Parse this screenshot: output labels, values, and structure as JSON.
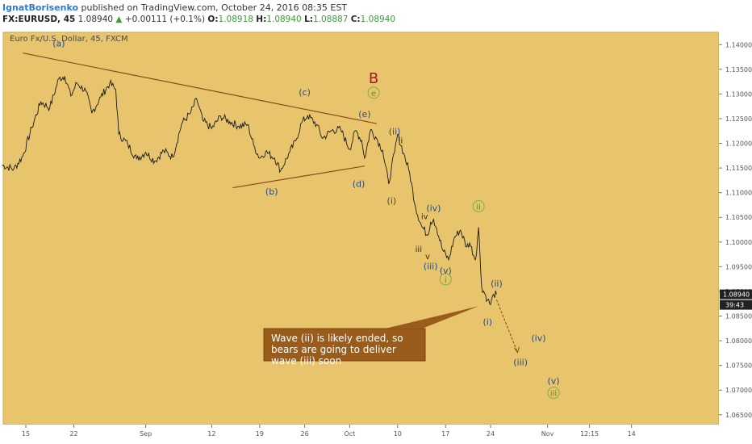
{
  "header": {
    "author": "IgnatBorisenko",
    "published_text": " published on TradingView.com, October 24, 2016 08:35 EST",
    "symbol": "FX:EURUSD, 45",
    "last": " 1.08940 ",
    "change_arrow": "▲",
    "change": " +0.00111 (+0.1%) ",
    "o_key": "O:",
    "o_val": "1.08918 ",
    "h_key": "H:",
    "h_val": "1.08940 ",
    "l_key": "L:",
    "l_val": "1.08887 ",
    "c_key": "C:",
    "c_val": "1.08940"
  },
  "chart_data": {
    "type": "line",
    "title": "Euro Fx/U.S. Dollar, 45, FXCM",
    "background": "#e8c56d",
    "line_color": "#1a1a1a",
    "ylim": [
      1.063,
      1.1425
    ],
    "y_ticks": [
      "1.14000",
      "1.13500",
      "1.13000",
      "1.12500",
      "1.12000",
      "1.11500",
      "1.11000",
      "1.10500",
      "1.10000",
      "1.09500",
      "1.09000",
      "1.08500",
      "1.08000",
      "1.07500",
      "1.07000",
      "1.06500"
    ],
    "x_ticks": [
      {
        "label": "15",
        "i": 8
      },
      {
        "label": "22",
        "i": 24
      },
      {
        "label": "Sep",
        "i": 48
      },
      {
        "label": "12",
        "i": 70
      },
      {
        "label": "19",
        "i": 86
      },
      {
        "label": "26",
        "i": 101
      },
      {
        "label": "Oct",
        "i": 116
      },
      {
        "label": "10",
        "i": 132
      },
      {
        "label": "17",
        "i": 148
      },
      {
        "label": "24",
        "i": 163
      },
      {
        "label": "Nov",
        "i": 182
      },
      {
        "label": "12:15",
        "i": 196
      },
      {
        "label": "14",
        "i": 210
      }
    ],
    "x_range": [
      0,
      250
    ],
    "series": [
      {
        "points": [
          [
            0,
            1.1156
          ],
          [
            4,
            1.1148
          ],
          [
            7,
            1.1174
          ],
          [
            10,
            1.1232
          ],
          [
            13,
            1.1284
          ],
          [
            16,
            1.1272
          ],
          [
            19,
            1.1331
          ],
          [
            21,
            1.1336
          ],
          [
            23,
            1.1296
          ],
          [
            25,
            1.1322
          ],
          [
            28,
            1.1306
          ],
          [
            30,
            1.1261
          ],
          [
            33,
            1.1294
          ],
          [
            36,
            1.1322
          ],
          [
            38,
            1.1309
          ],
          [
            39,
            1.1219
          ],
          [
            42,
            1.1198
          ],
          [
            45,
            1.1168
          ],
          [
            48,
            1.1182
          ],
          [
            51,
            1.1164
          ],
          [
            54,
            1.1185
          ],
          [
            57,
            1.1172
          ],
          [
            60,
            1.124
          ],
          [
            63,
            1.1262
          ],
          [
            65,
            1.129
          ],
          [
            67,
            1.1246
          ],
          [
            70,
            1.123
          ],
          [
            73,
            1.1255
          ],
          [
            76,
            1.1244
          ],
          [
            79,
            1.1235
          ],
          [
            82,
            1.1238
          ],
          [
            84,
            1.1196
          ],
          [
            86,
            1.117
          ],
          [
            88,
            1.1183
          ],
          [
            91,
            1.117
          ],
          [
            93,
            1.1145
          ],
          [
            96,
            1.1182
          ],
          [
            98,
            1.1205
          ],
          [
            100,
            1.1242
          ],
          [
            102,
            1.1256
          ],
          [
            105,
            1.1238
          ],
          [
            107,
            1.121
          ],
          [
            110,
            1.1226
          ],
          [
            113,
            1.1228
          ],
          [
            116,
            1.1188
          ],
          [
            118,
            1.1226
          ],
          [
            120,
            1.1206
          ],
          [
            121,
            1.117
          ],
          [
            123,
            1.1228
          ],
          [
            125,
            1.121
          ],
          [
            127,
            1.1186
          ],
          [
            129,
            1.1118
          ],
          [
            131,
            1.1183
          ],
          [
            132,
            1.1218
          ],
          [
            134,
            1.118
          ],
          [
            136,
            1.114
          ],
          [
            138,
            1.107
          ],
          [
            140,
            1.1032
          ],
          [
            142,
            1.1014
          ],
          [
            143,
            1.104
          ],
          [
            144,
            1.1046
          ],
          [
            145,
            1.1028
          ],
          [
            147,
            1.0984
          ],
          [
            149,
            1.0964
          ],
          [
            151,
            1.101
          ],
          [
            153,
            1.1024
          ],
          [
            155,
            1.099
          ],
          [
            156,
            1.0998
          ],
          [
            158,
            1.0964
          ],
          [
            159,
            1.103
          ],
          [
            160,
            1.091
          ],
          [
            162,
            1.0883
          ],
          [
            163,
            1.0873
          ],
          [
            164,
            1.0894
          ],
          [
            165,
            1.0894
          ]
        ]
      }
    ],
    "last_price_label": "1.08940",
    "countdown_label": "39:43",
    "wave_labels": [
      {
        "text": "(a)",
        "i": 19,
        "y": 1.1396
      },
      {
        "text": "(b)",
        "i": 90,
        "y": 1.1096
      },
      {
        "text": "(c)",
        "i": 101,
        "y": 1.1297
      },
      {
        "text": "(d)",
        "i": 119,
        "y": 1.1112
      },
      {
        "text": "(e)",
        "i": 121,
        "y": 1.1253
      },
      {
        "text": "(ii)",
        "i": 131,
        "y": 1.1218
      },
      {
        "text": "ii",
        "i": 133,
        "y": 1.12
      },
      {
        "text": "(i)",
        "i": 130,
        "y": 1.1077
      },
      {
        "text": "(iv)",
        "i": 144,
        "y": 1.1063
      },
      {
        "text": "iv",
        "i": 141,
        "y": 1.1046
      },
      {
        "text": "iii",
        "i": 139,
        "y": 1.098
      },
      {
        "text": "v",
        "i": 142,
        "y": 1.0965
      },
      {
        "text": "(iii)",
        "i": 143,
        "y": 1.0945
      },
      {
        "text": "(v)",
        "i": 148,
        "y": 1.0936
      },
      {
        "text": "(ii)",
        "i": 165,
        "y": 1.091
      },
      {
        "text": "(i)",
        "i": 162,
        "y": 1.0832
      },
      {
        "text": "(iv)",
        "i": 179,
        "y": 1.0799
      },
      {
        "text": "(iii)",
        "i": 173,
        "y": 1.075
      },
      {
        "text": "(v)",
        "i": 184,
        "y": 1.0713
      }
    ],
    "circle_labels": [
      {
        "text": "e",
        "i": 124,
        "y": 1.1296
      },
      {
        "text": "ii",
        "i": 159,
        "y": 1.1066
      },
      {
        "text": "i",
        "i": 148,
        "y": 1.0918
      },
      {
        "text": "iii",
        "i": 184,
        "y": 1.0688
      }
    ],
    "big_label": {
      "text": "B",
      "i": 124,
      "y": 1.1322
    },
    "triangle_lines": [
      {
        "from": [
          7,
          1.1383
        ],
        "to": [
          125,
          1.124
        ]
      },
      {
        "from": [
          77,
          1.111
        ],
        "to": [
          121,
          1.1154
        ]
      }
    ],
    "projection": {
      "from": [
        165,
        1.0883
      ],
      "to": [
        172,
        1.0776
      ]
    },
    "callout": {
      "text": "Wave (ii) is likely ended, so bears are going to deliver wave (iii) soon",
      "pointer": [
        159,
        1.087
      ]
    }
  }
}
